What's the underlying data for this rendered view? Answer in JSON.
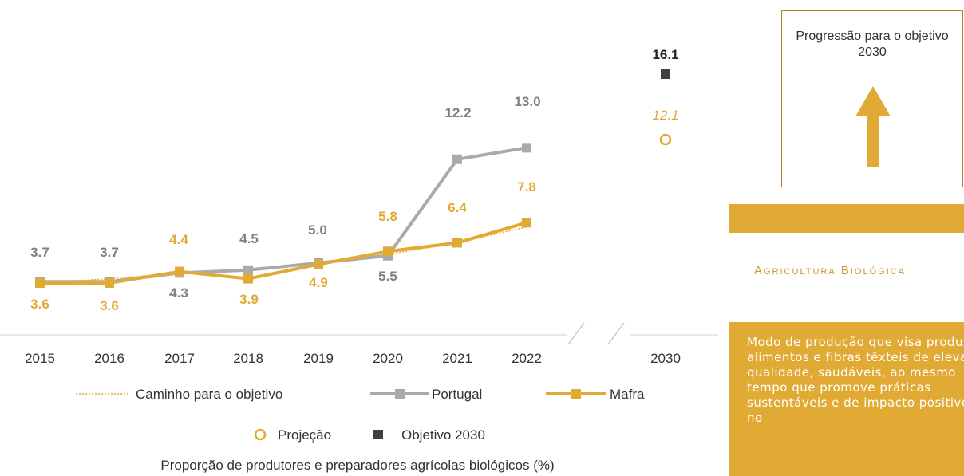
{
  "chart_data": {
    "type": "line",
    "x": [
      "2015",
      "2016",
      "2017",
      "2018",
      "2019",
      "2020",
      "2021",
      "2022"
    ],
    "target_x": "2030",
    "series": [
      {
        "name": "Portugal",
        "values": [
          3.7,
          3.7,
          4.3,
          4.5,
          5.0,
          5.5,
          12.2,
          13.0
        ],
        "color": "#aaaaaa"
      },
      {
        "name": "Mafra",
        "values": [
          3.6,
          3.6,
          4.4,
          3.9,
          4.9,
          5.8,
          6.4,
          7.8
        ],
        "color": "#e1aa35"
      },
      {
        "name": "Caminho para o objetivo",
        "values": [
          3.6,
          3.9,
          4.3,
          4.6,
          5.0,
          5.6,
          6.4,
          7.5
        ],
        "color": "#e1aa35"
      }
    ],
    "point_labels": {
      "portugal": [
        "3.7",
        "3.7",
        "4.3",
        "4.5",
        "5.0",
        "5.5",
        "12.2",
        "13.0"
      ],
      "mafra": [
        "3.6",
        "3.6",
        "4.4",
        "3.9",
        "4.9",
        "5.8",
        "6.4",
        "7.8"
      ]
    },
    "projection_2030": {
      "name": "Projeção",
      "value": 12.1,
      "label": "12.1",
      "color": "#e1aa35"
    },
    "objective_2030": {
      "name": "Objetivo 2030",
      "value": 16.1,
      "label": "16.1",
      "color": "#404040"
    },
    "caption": "Proporção de produtores e preparadores agrícolas biológicos (%)",
    "legend": [
      "Caminho para o objetivo",
      "Portugal",
      "Mafra",
      "Projeção",
      "Objetivo 2030"
    ]
  },
  "side_panel": {
    "target_title": "Progressão para o objetivo 2030",
    "section_title": "Agricultura Biológica",
    "description": "Modo de produção que visa produzir alimentos e fibras têxteis de elevada qualidade, saudáveis, ao mesmo tempo que promove práticas sustentáveis e de impacto positivo no"
  }
}
